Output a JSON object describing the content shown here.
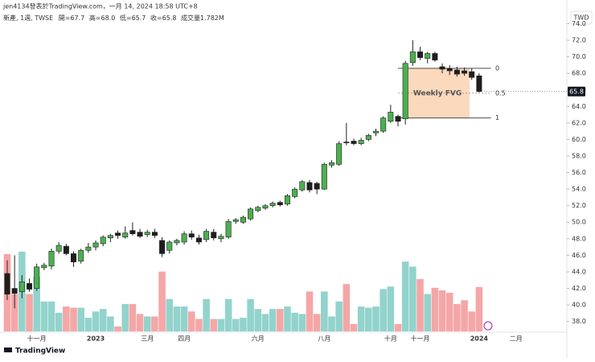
{
  "header": {
    "byline": "jen4134發表於TradingView.com，一月 14, 2024 18:58 UTC+8",
    "symbol": "新產, 1週, TWSE",
    "open": "開=67.7",
    "high": "高=68.0",
    "low": "低=65.7",
    "close": "收=65.8",
    "volume": "成交量1.782M",
    "currency": "TWD",
    "logo": "TradingView"
  },
  "chart_data": {
    "type": "candlestick",
    "categories": [
      null,
      null,
      null,
      null,
      "十一月",
      null,
      null,
      null,
      null,
      null,
      null,
      null,
      "2023",
      null,
      null,
      null,
      null,
      null,
      null,
      "三月",
      null,
      null,
      null,
      null,
      "四月",
      null,
      null,
      null,
      null,
      null,
      null,
      null,
      null,
      null,
      "六月",
      null,
      null,
      null,
      null,
      null,
      null,
      null,
      null,
      "八月",
      null,
      null,
      null,
      null,
      null,
      null,
      null,
      null,
      "十月",
      null,
      null,
      null,
      "十一月",
      null,
      null,
      null,
      null,
      null,
      null,
      null,
      "2024",
      null,
      null,
      null,
      null,
      "二月"
    ],
    "bold_categories": [
      "2023",
      "2024"
    ],
    "open": [
      43.8,
      42.0,
      41.6,
      42.6,
      42.0,
      44.5,
      44.7,
      46.5,
      47.1,
      46.2,
      45.3,
      46.6,
      47.0,
      47.4,
      48.1,
      48.7,
      48.2,
      49.0,
      48.8,
      48.5,
      48.8,
      47.8,
      46.6,
      47.5,
      47.6,
      48.6,
      48.1,
      47.9,
      48.8,
      48.0,
      48.2,
      50.1,
      50.0,
      50.4,
      51.4,
      51.7,
      52.0,
      52.4,
      52.2,
      53.1,
      53.9,
      54.8,
      54.7,
      54.0,
      56.9,
      57.0,
      59.7,
      59.8,
      59.5,
      60.0,
      60.8,
      61.0,
      62.2,
      62.8,
      62.5,
      69.3,
      70.6,
      69.8,
      70.4,
      68.8,
      68.6,
      68.4,
      68.3,
      68.2,
      67.7,
      null,
      null,
      null,
      null,
      null
    ],
    "high": [
      45.4,
      46.0,
      43.6,
      43.2,
      45.0,
      45.1,
      46.8,
      47.6,
      47.4,
      46.5,
      46.8,
      47.5,
      47.8,
      48.4,
      48.6,
      49.0,
      49.5,
      50.0,
      49.2,
      49.1,
      49.2,
      48.2,
      47.8,
      48.0,
      48.9,
      49.0,
      48.5,
      49.2,
      49.2,
      48.6,
      50.4,
      50.5,
      50.8,
      51.8,
      52.0,
      52.2,
      52.5,
      52.6,
      53.4,
      54.2,
      55.1,
      55.1,
      54.9,
      57.2,
      57.5,
      59.8,
      62.0,
      60.1,
      60.2,
      60.7,
      61.3,
      62.8,
      64.2,
      63.0,
      69.5,
      72.0,
      71.2,
      70.6,
      70.6,
      69.2,
      69.0,
      68.8,
      68.7,
      68.6,
      68.0,
      null,
      null,
      null,
      null,
      null
    ],
    "low": [
      40.6,
      39.6,
      40.8,
      41.6,
      41.7,
      44.2,
      44.3,
      46.2,
      46.0,
      44.6,
      45.0,
      46.3,
      46.6,
      47.1,
      47.6,
      48.0,
      48.0,
      48.4,
      48.1,
      48.2,
      48.1,
      45.8,
      46.2,
      47.2,
      47.3,
      47.9,
      47.3,
      47.6,
      47.8,
      47.6,
      48.0,
      49.8,
      49.8,
      50.2,
      51.2,
      51.5,
      51.8,
      51.9,
      52.0,
      52.9,
      53.7,
      53.6,
      53.4,
      53.9,
      56.6,
      56.8,
      59.3,
      59.3,
      59.3,
      59.8,
      60.4,
      60.8,
      62.0,
      61.6,
      61.8,
      68.9,
      69.6,
      69.2,
      69.4,
      68.0,
      67.8,
      67.6,
      67.7,
      67.2,
      65.7,
      null,
      null,
      null,
      null,
      null
    ],
    "close": [
      41.3,
      41.4,
      42.8,
      41.9,
      44.6,
      44.8,
      46.5,
      47.2,
      46.2,
      45.2,
      46.6,
      47.0,
      47.5,
      48.2,
      48.4,
      48.4,
      48.7,
      48.6,
      48.3,
      48.8,
      48.4,
      46.2,
      47.6,
      47.8,
      48.6,
      48.2,
      47.6,
      48.9,
      48.1,
      48.3,
      50.1,
      50.3,
      50.6,
      51.6,
      51.8,
      52.0,
      52.3,
      52.1,
      53.2,
      54.0,
      54.9,
      53.9,
      54.0,
      57.0,
      57.2,
      59.5,
      59.6,
      59.5,
      59.9,
      60.5,
      61.0,
      62.6,
      63.3,
      62.2,
      69.2,
      70.6,
      69.9,
      70.4,
      69.6,
      68.5,
      68.3,
      67.9,
      68.0,
      67.5,
      65.8,
      null,
      null,
      null,
      null,
      null
    ],
    "volume": [
      3.1,
      1.5,
      3.2,
      1.5,
      2.2,
      1.2,
      1.2,
      0.75,
      1.0,
      0.95,
      0.95,
      0.55,
      0.8,
      0.9,
      0.6,
      0.2,
      1.1,
      1.1,
      0.7,
      0.6,
      0.6,
      2.4,
      1.3,
      1.0,
      1.0,
      0.8,
      0.5,
      1.3,
      0.5,
      0.5,
      1.3,
      0.5,
      0.55,
      1.3,
      0.9,
      0.7,
      0.9,
      0.9,
      1.0,
      0.75,
      0.7,
      1.6,
      0.7,
      1.6,
      0.6,
      1.2,
      1.9,
      0.3,
      1.0,
      0.95,
      1.0,
      1.7,
      1.8,
      0.3,
      2.8,
      2.6,
      2.1,
      1.5,
      1.75,
      1.65,
      1.55,
      1.1,
      1.25,
      0.8,
      1.782,
      null,
      null,
      null,
      null,
      null
    ],
    "up_color": "#4caf50",
    "down_color": "#1e1e1e",
    "volume_up_color": "#92d3cc",
    "volume_down_color": "#f5a6a6",
    "ylim": [
      36.8,
      75.5
    ],
    "yticks": [
      {
        "value": 38,
        "label": "38.0"
      },
      {
        "value": 40,
        "label": "40.0"
      },
      {
        "value": 42,
        "label": "42.0"
      },
      {
        "value": 44,
        "label": "44.0"
      },
      {
        "value": 46,
        "label": "46.0"
      },
      {
        "value": 48,
        "label": "48.0"
      },
      {
        "value": 50,
        "label": "50.0"
      },
      {
        "value": 52,
        "label": "52.0"
      },
      {
        "value": 54,
        "label": "54.0"
      },
      {
        "value": 56,
        "label": "56.0"
      },
      {
        "value": 58,
        "label": "58.0"
      },
      {
        "value": 60,
        "label": "60.0"
      },
      {
        "value": 62,
        "label": "62.0"
      },
      {
        "value": 64,
        "label": "64.0"
      },
      {
        "value": 66,
        "label": "66.0"
      },
      {
        "value": 68,
        "label": "68.0"
      },
      {
        "value": 70,
        "label": "70.0"
      },
      {
        "value": 72,
        "label": "72.0"
      },
      {
        "value": 74,
        "label": "74.0"
      }
    ],
    "last_price": {
      "value": 65.8,
      "label": "65.8"
    },
    "fvg": {
      "label": "Weekly FVG",
      "top": 68.6,
      "mid": 65.6,
      "bottom": 62.6,
      "top_label": "0",
      "mid_label": "0.5",
      "bottom_label": "1",
      "color": "#fbd9bd"
    }
  }
}
